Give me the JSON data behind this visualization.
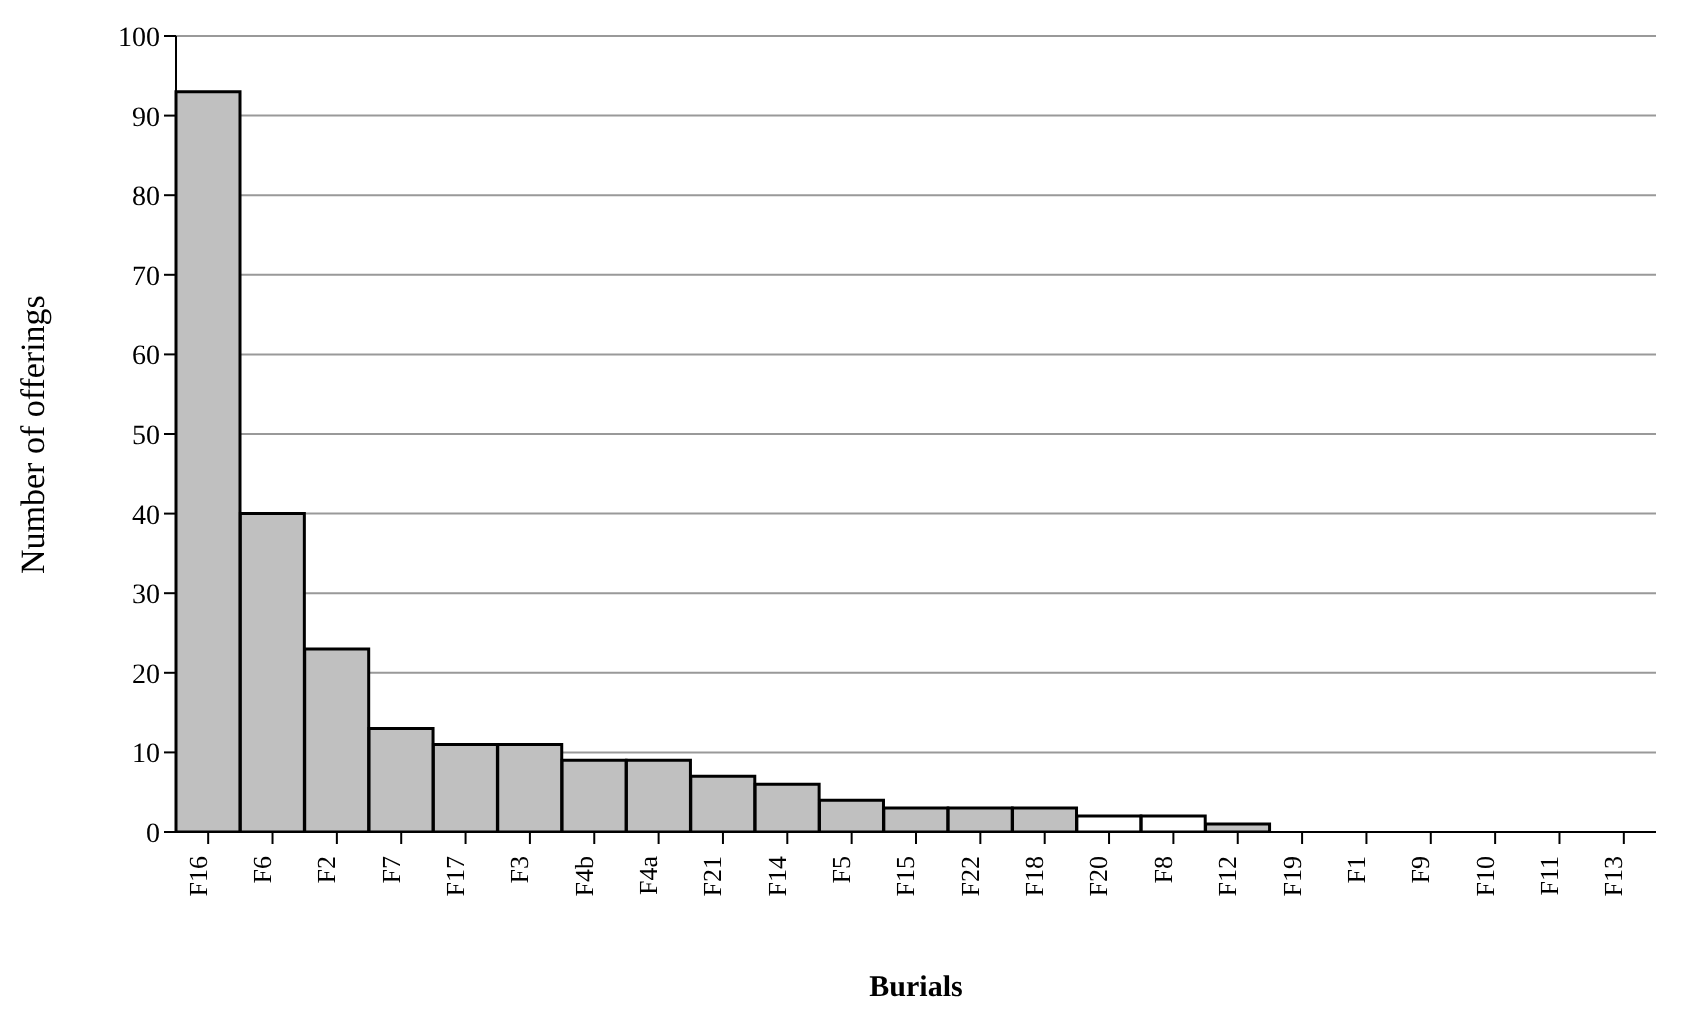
{
  "chart_data": {
    "type": "bar",
    "xlabel": "Burials",
    "ylabel": "Number of offerings",
    "categories": [
      "F16",
      "F6",
      "F2",
      "F7",
      "F17",
      "F3",
      "F4b",
      "F4a",
      "F21",
      "F14",
      "F5",
      "F15",
      "F22",
      "F18",
      "F20",
      "F8",
      "F12",
      "F19",
      "F1",
      "F9",
      "F10",
      "F11",
      "F13"
    ],
    "values": [
      93,
      40,
      23,
      13,
      11,
      11,
      9,
      9,
      7,
      6,
      4,
      3,
      3,
      3,
      2,
      2,
      1,
      0,
      0,
      0,
      0,
      0,
      0
    ],
    "colors": [
      "#c0c0c0",
      "#c0c0c0",
      "#c0c0c0",
      "#c0c0c0",
      "#c0c0c0",
      "#c0c0c0",
      "#c0c0c0",
      "#c0c0c0",
      "#c0c0c0",
      "#c0c0c0",
      "#c0c0c0",
      "#c0c0c0",
      "#c0c0c0",
      "#c0c0c0",
      "#ffffff",
      "#ffffff",
      "#c0c0c0",
      "#c0c0c0",
      "#c0c0c0",
      "#c0c0c0",
      "#c0c0c0",
      "#c0c0c0",
      "#c0c0c0"
    ],
    "ylim": [
      0,
      100
    ],
    "yticks": [
      0,
      10,
      20,
      30,
      40,
      50,
      60,
      70,
      80,
      90,
      100
    ],
    "grid": "y"
  }
}
